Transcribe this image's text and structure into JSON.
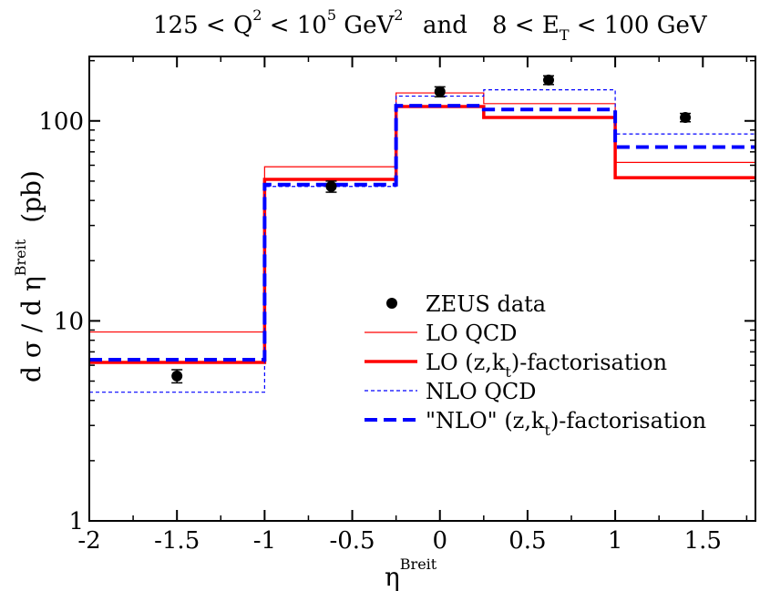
{
  "chart_data": {
    "type": "step-line",
    "title": {
      "part1": "125 < Q",
      "sup1": "2",
      "part2": " < 10",
      "sup2": "5",
      "part3": " GeV",
      "sup3": "2",
      "part4": "and",
      "part5": "8 < E",
      "sub5": "T",
      "part6": " < 100 GeV"
    },
    "xlabel": {
      "main": "η",
      "sup": "Breit"
    },
    "ylabel": {
      "main": "d σ / d η",
      "sup": "Breit",
      "unit": "(pb)"
    },
    "xlim": [
      -2,
      1.8
    ],
    "ylim": [
      1,
      210
    ],
    "yscale": "log",
    "x_ticks": [
      -2,
      -1.5,
      -1,
      -0.5,
      0,
      0.5,
      1,
      1.5
    ],
    "x_tick_labels": [
      "-2",
      "-1.5",
      "-1",
      "-0.5",
      "0",
      "0.5",
      "1",
      "1.5"
    ],
    "y_ticks": [
      1,
      10,
      100
    ],
    "y_tick_labels": [
      "1",
      "10",
      "100"
    ],
    "data_points": {
      "name": "ZEUS data",
      "points": [
        {
          "x": -1.5,
          "y": 5.3,
          "err_low": 0.4,
          "err_high": 0.4
        },
        {
          "x": -0.62,
          "y": 47,
          "err_low": 3,
          "err_high": 3
        },
        {
          "x": 0.0,
          "y": 140,
          "err_low": 8,
          "err_high": 8
        },
        {
          "x": 0.62,
          "y": 160,
          "err_low": 8,
          "err_high": 8
        },
        {
          "x": 1.4,
          "y": 104,
          "err_low": 5,
          "err_high": 5
        }
      ]
    },
    "series": [
      {
        "name": "LO QCD",
        "color": "#ff0000",
        "style": "solid-thin",
        "bins": [
          {
            "x0": -2,
            "x1": -1,
            "y": 8.8
          },
          {
            "x0": -1,
            "x1": -0.25,
            "y": 59
          },
          {
            "x0": -0.25,
            "x1": 0.25,
            "y": 138
          },
          {
            "x0": 0.25,
            "x1": 1,
            "y": 122
          },
          {
            "x0": 1,
            "x1": 1.8,
            "y": 62
          }
        ]
      },
      {
        "name": "LO (z,k_t)-factorisation",
        "color": "#ff0000",
        "style": "solid-thick",
        "bins": [
          {
            "x0": -2,
            "x1": -1,
            "y": 6.2
          },
          {
            "x0": -1,
            "x1": -0.25,
            "y": 51
          },
          {
            "x0": -0.25,
            "x1": 0.25,
            "y": 118
          },
          {
            "x0": 0.25,
            "x1": 1,
            "y": 104
          },
          {
            "x0": 1,
            "x1": 1.8,
            "y": 52
          }
        ]
      },
      {
        "name": "NLO QCD",
        "color": "#0000ff",
        "style": "dashed-thin",
        "bins": [
          {
            "x0": -2,
            "x1": -1,
            "y": 4.4
          },
          {
            "x0": -1,
            "x1": -0.25,
            "y": 47
          },
          {
            "x0": -0.25,
            "x1": 0.25,
            "y": 133
          },
          {
            "x0": 0.25,
            "x1": 1,
            "y": 143
          },
          {
            "x0": 1,
            "x1": 1.8,
            "y": 86
          }
        ]
      },
      {
        "name": "\"NLO\" (z,k_t)-factorisation",
        "color": "#0000ff",
        "style": "dashed-thick",
        "bins": [
          {
            "x0": -2,
            "x1": -1,
            "y": 6.4
          },
          {
            "x0": -1,
            "x1": -0.25,
            "y": 48
          },
          {
            "x0": -0.25,
            "x1": 0.25,
            "y": 119
          },
          {
            "x0": 0.25,
            "x1": 1,
            "y": 114
          },
          {
            "x0": 1,
            "x1": 1.8,
            "y": 74
          }
        ]
      }
    ],
    "legend": {
      "placement": "center-right",
      "entries": [
        {
          "text": "ZEUS data",
          "marker": "dot"
        },
        {
          "text": "LO QCD",
          "marker": "solid-thin-red"
        },
        {
          "main": "LO (z,k",
          "sub": "t",
          "tail": ")-factorisation",
          "marker": "solid-thick-red"
        },
        {
          "text": "NLO QCD",
          "marker": "dashed-thin-blue"
        },
        {
          "main": "\"NLO\" (z,k",
          "sub": "t",
          "tail": ")-factorisation",
          "marker": "dashed-thick-blue"
        }
      ]
    }
  }
}
